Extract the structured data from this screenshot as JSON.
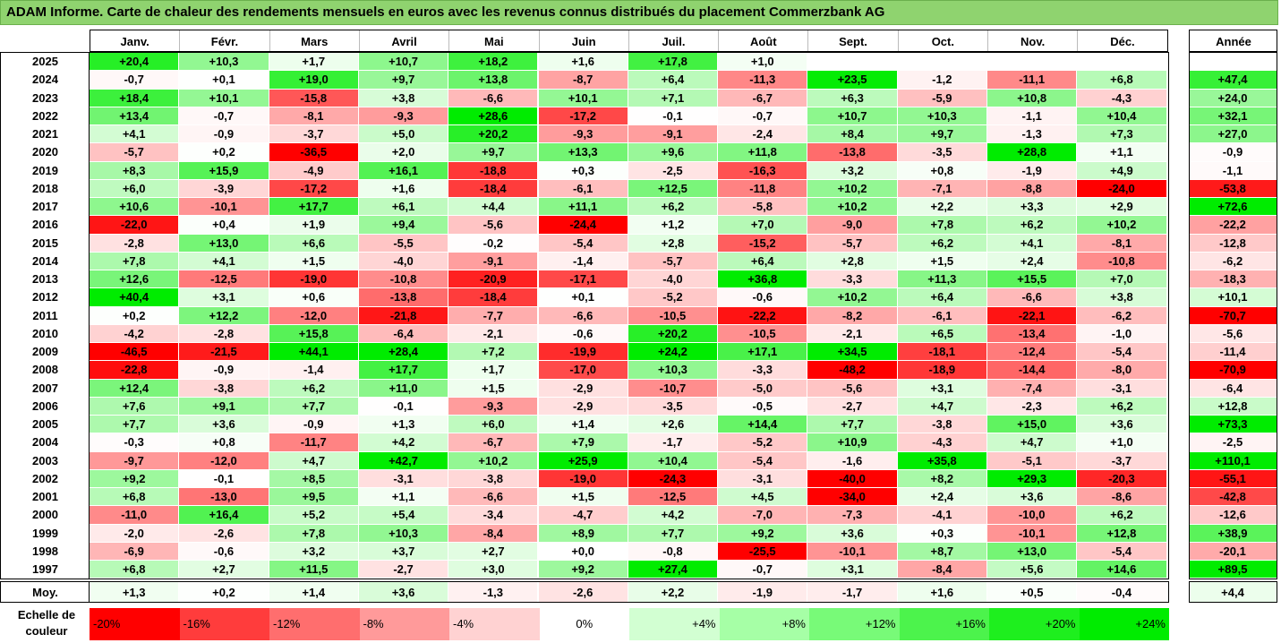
{
  "title": "ADAM Informe. Carte de chaleur des rendements mensuels en euros avec les revenus connus distribués du placement Commerzbank AG",
  "chart_data": {
    "type": "heatmap",
    "columns": [
      "Janv.",
      "Févr.",
      "Mars",
      "Avril",
      "Mai",
      "Juin",
      "Juil.",
      "Août",
      "Sept.",
      "Oct.",
      "Nov.",
      "Déc."
    ],
    "year_header": "Année",
    "rows": [
      {
        "label": "2025",
        "values": [
          "+20,4",
          "+10,3",
          "+1,7",
          "+10,7",
          "+18,2",
          "+1,6",
          "+17,8",
          "+1,0",
          "",
          "",
          "",
          ""
        ],
        "year": ""
      },
      {
        "label": "2024",
        "values": [
          "-0,7",
          "+0,1",
          "+19,0",
          "+9,7",
          "+13,8",
          "-8,7",
          "+6,4",
          "-11,3",
          "+23,5",
          "-1,2",
          "-11,1",
          "+6,8"
        ],
        "year": "+47,4"
      },
      {
        "label": "2023",
        "values": [
          "+18,4",
          "+10,1",
          "-15,8",
          "+3,8",
          "-6,6",
          "+10,1",
          "+7,1",
          "-6,7",
          "+6,3",
          "-5,9",
          "+10,8",
          "-4,3"
        ],
        "year": "+24,0"
      },
      {
        "label": "2022",
        "values": [
          "+13,4",
          "-0,7",
          "-8,1",
          "-9,3",
          "+28,6",
          "-17,2",
          "-0,1",
          "-0,7",
          "+10,7",
          "+10,3",
          "-1,1",
          "+10,4"
        ],
        "year": "+32,1"
      },
      {
        "label": "2021",
        "values": [
          "+4,1",
          "-0,9",
          "-3,7",
          "+5,0",
          "+20,2",
          "-9,3",
          "-9,1",
          "-2,4",
          "+8,4",
          "+9,7",
          "-1,3",
          "+7,3"
        ],
        "year": "+27,0"
      },
      {
        "label": "2020",
        "values": [
          "-5,7",
          "+0,2",
          "-36,5",
          "+2,0",
          "+9,7",
          "+13,3",
          "+9,6",
          "+11,8",
          "-13,8",
          "-3,5",
          "+28,8",
          "+1,1"
        ],
        "year": "-0,9"
      },
      {
        "label": "2019",
        "values": [
          "+8,3",
          "+15,9",
          "-4,9",
          "+16,1",
          "-18,8",
          "+0,3",
          "-2,5",
          "-16,3",
          "+3,2",
          "+0,8",
          "-1,9",
          "+4,9"
        ],
        "year": "-1,1"
      },
      {
        "label": "2018",
        "values": [
          "+6,0",
          "-3,9",
          "-17,2",
          "+1,6",
          "-18,4",
          "-6,1",
          "+12,5",
          "-11,8",
          "+10,2",
          "-7,1",
          "-8,8",
          "-24,0"
        ],
        "year": "-53,8"
      },
      {
        "label": "2017",
        "values": [
          "+10,6",
          "-10,1",
          "+17,7",
          "+6,1",
          "+4,4",
          "+11,1",
          "+6,2",
          "-5,8",
          "+10,2",
          "+2,2",
          "+3,3",
          "+2,9"
        ],
        "year": "+72,6"
      },
      {
        "label": "2016",
        "values": [
          "-22,0",
          "+0,4",
          "+1,9",
          "+9,4",
          "-5,6",
          "-24,4",
          "+1,2",
          "+7,0",
          "-9,0",
          "+7,8",
          "+6,2",
          "+10,2"
        ],
        "year": "-22,2"
      },
      {
        "label": "2015",
        "values": [
          "-2,8",
          "+13,0",
          "+6,6",
          "-5,5",
          "-0,2",
          "-5,4",
          "+2,8",
          "-15,2",
          "-5,7",
          "+6,2",
          "+4,1",
          "-8,1"
        ],
        "year": "-12,8"
      },
      {
        "label": "2014",
        "values": [
          "+7,8",
          "+4,1",
          "+1,5",
          "-4,0",
          "-9,1",
          "-1,4",
          "-5,7",
          "+6,4",
          "+2,8",
          "+1,5",
          "+2,4",
          "-10,8"
        ],
        "year": "-6,2"
      },
      {
        "label": "2013",
        "values": [
          "+12,6",
          "-12,5",
          "-19,0",
          "-10,8",
          "-20,9",
          "-17,1",
          "-4,0",
          "+36,8",
          "-3,3",
          "+11,3",
          "+15,5",
          "+7,0"
        ],
        "year": "-18,3"
      },
      {
        "label": "2012",
        "values": [
          "+40,4",
          "+3,1",
          "+0,6",
          "-13,8",
          "-18,4",
          "+0,1",
          "-5,2",
          "-0,6",
          "+10,2",
          "+6,4",
          "-6,6",
          "+3,8"
        ],
        "year": "+10,1"
      },
      {
        "label": "2011",
        "values": [
          "+0,2",
          "+12,2",
          "-12,0",
          "-21,8",
          "-7,7",
          "-6,6",
          "-10,5",
          "-22,2",
          "-8,2",
          "-6,1",
          "-22,1",
          "-6,2"
        ],
        "year": "-70,7"
      },
      {
        "label": "2010",
        "values": [
          "-4,2",
          "-2,8",
          "+15,8",
          "-6,4",
          "-2,1",
          "-0,6",
          "+20,2",
          "-10,5",
          "-2,1",
          "+6,5",
          "-13,4",
          "-1,0"
        ],
        "year": "-5,6"
      },
      {
        "label": "2009",
        "values": [
          "-46,5",
          "-21,5",
          "+44,1",
          "+28,4",
          "+7,2",
          "-19,9",
          "+24,2",
          "+17,1",
          "+34,5",
          "-18,1",
          "-12,4",
          "-5,4"
        ],
        "year": "-11,4"
      },
      {
        "label": "2008",
        "values": [
          "-22,8",
          "-0,9",
          "-1,4",
          "+17,7",
          "+1,7",
          "-17,0",
          "+10,3",
          "-3,3",
          "-48,2",
          "-18,9",
          "-14,4",
          "-8,0"
        ],
        "year": "-70,9"
      },
      {
        "label": "2007",
        "values": [
          "+12,4",
          "-3,8",
          "+6,2",
          "+11,0",
          "+1,5",
          "-2,9",
          "-10,7",
          "-5,0",
          "-5,6",
          "+3,1",
          "-7,4",
          "-3,1"
        ],
        "year": "-6,4"
      },
      {
        "label": "2006",
        "values": [
          "+7,6",
          "+9,1",
          "+7,7",
          "-0,1",
          "-9,3",
          "-2,9",
          "-3,5",
          "-0,5",
          "-2,7",
          "+4,7",
          "-2,3",
          "+6,2"
        ],
        "year": "+12,8"
      },
      {
        "label": "2005",
        "values": [
          "+7,7",
          "+3,6",
          "-0,9",
          "+1,3",
          "+6,0",
          "+1,4",
          "+2,6",
          "+14,4",
          "+7,7",
          "-3,8",
          "+15,0",
          "+3,6"
        ],
        "year": "+73,3"
      },
      {
        "label": "2004",
        "values": [
          "-0,3",
          "+0,8",
          "-11,7",
          "+4,2",
          "-6,7",
          "+7,9",
          "-1,7",
          "-5,2",
          "+10,9",
          "-4,3",
          "+4,7",
          "+1,0"
        ],
        "year": "-2,5"
      },
      {
        "label": "2003",
        "values": [
          "-9,7",
          "-12,0",
          "+4,7",
          "+42,7",
          "+10,2",
          "+25,9",
          "+10,4",
          "-5,4",
          "-1,6",
          "+35,8",
          "-5,1",
          "-3,7"
        ],
        "year": "+110,1"
      },
      {
        "label": "2002",
        "values": [
          "+9,2",
          "-0,1",
          "+8,5",
          "-3,1",
          "-3,8",
          "-19,0",
          "-24,3",
          "-3,1",
          "-40,0",
          "+8,2",
          "+29,3",
          "-20,3"
        ],
        "year": "-55,1"
      },
      {
        "label": "2001",
        "values": [
          "+6,8",
          "-13,0",
          "+9,5",
          "+1,1",
          "-6,6",
          "+1,5",
          "-12,5",
          "+4,5",
          "-34,0",
          "+2,4",
          "+3,6",
          "-8,6"
        ],
        "year": "-42,8"
      },
      {
        "label": "2000",
        "values": [
          "-11,0",
          "+16,4",
          "+5,2",
          "+5,4",
          "-3,4",
          "-4,7",
          "+4,2",
          "-7,0",
          "-7,3",
          "-4,1",
          "-10,0",
          "+6,2"
        ],
        "year": "-12,6"
      },
      {
        "label": "1999",
        "values": [
          "-2,0",
          "-2,6",
          "+7,8",
          "+10,3",
          "-8,4",
          "+8,9",
          "+7,7",
          "+9,2",
          "+3,6",
          "+0,3",
          "-10,1",
          "+12,8"
        ],
        "year": "+38,9"
      },
      {
        "label": "1998",
        "values": [
          "-6,9",
          "-0,6",
          "+3,2",
          "+3,7",
          "+2,7",
          "+0,0",
          "-0,8",
          "-25,5",
          "-10,1",
          "+8,7",
          "+13,0",
          "-5,4"
        ],
        "year": "-20,1"
      },
      {
        "label": "1997",
        "values": [
          "+6,8",
          "+2,7",
          "+11,5",
          "-2,7",
          "+3,0",
          "+9,2",
          "+27,4",
          "-0,7",
          "+3,1",
          "-8,4",
          "+5,6",
          "+14,6"
        ],
        "year": "+89,5"
      }
    ],
    "average_row": {
      "label": "Moy.",
      "values": [
        "+1,3",
        "+0,2",
        "+1,4",
        "+3,6",
        "-1,3",
        "-2,6",
        "+2,2",
        "-1,9",
        "-1,7",
        "+1,6",
        "+0,5",
        "-0,4"
      ],
      "year": "+4,4"
    },
    "scale": {
      "label": "Echelle de couleur",
      "steps": [
        "-20%",
        "-16%",
        "-12%",
        "-8%",
        "-4%",
        "0%",
        "+4%",
        "+8%",
        "+12%",
        "+16%",
        "+20%",
        "+24%"
      ],
      "colors": [
        "#ff0000",
        "#ff3c3c",
        "#ff6e6e",
        "#ff9a9a",
        "#ffd2d2",
        "#ffffff",
        "#d2ffd2",
        "#a6ffa6",
        "#78fa78",
        "#4cf34c",
        "#1eef1e",
        "#00ec00"
      ]
    }
  }
}
